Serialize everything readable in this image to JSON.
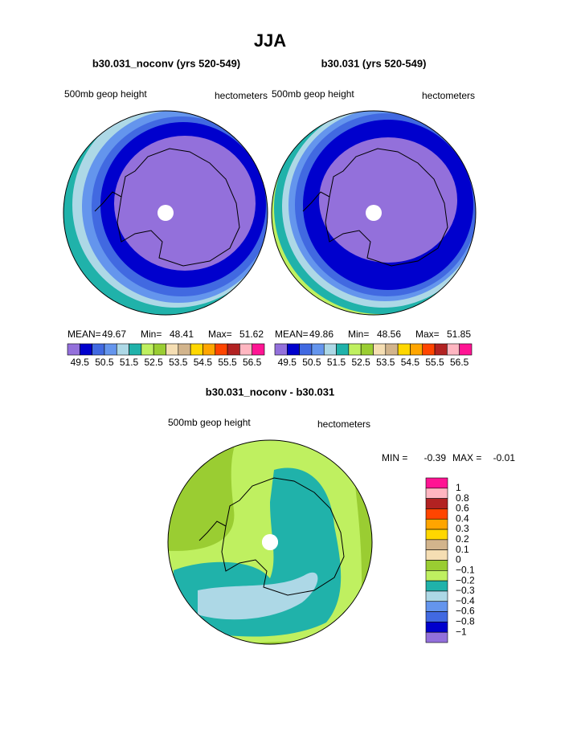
{
  "title": "JJA",
  "panels": [
    {
      "subtitle": "b30.031_noconv (yrs 520-549)",
      "left_label": "500mb geop height",
      "right_label": "hectometers",
      "stats": [
        {
          "label": "MEAN=",
          "value": 49.67
        },
        {
          "label": "Min=",
          "value": 48.41
        },
        {
          "label": "Max=",
          "value": 51.62
        }
      ],
      "colorbar": {
        "colors": [
          "#9370db",
          "#0000cd",
          "#4169e1",
          "#6495ed",
          "#add8e6",
          "#20b2aa",
          "#bff060",
          "#9acd32",
          "#f5deb3",
          "#d2b48c",
          "#ffd700",
          "#ffa500",
          "#ff4500",
          "#b22222",
          "#ffb6c1",
          "#ff1493"
        ],
        "labels": [
          "49.5",
          "50.5",
          "51.5",
          "52.5",
          "53.5",
          "54.5",
          "55.5",
          "56.5"
        ]
      }
    },
    {
      "subtitle": "b30.031 (yrs 520-549)",
      "left_label": "500mb geop height",
      "right_label": "hectometers",
      "stats": [
        {
          "label": "MEAN=",
          "value": 49.86
        },
        {
          "label": "Min=",
          "value": 48.56
        },
        {
          "label": "Max=",
          "value": 51.85
        }
      ],
      "colorbar": {
        "colors": [
          "#9370db",
          "#0000cd",
          "#4169e1",
          "#6495ed",
          "#add8e6",
          "#20b2aa",
          "#bff060",
          "#9acd32",
          "#f5deb3",
          "#d2b48c",
          "#ffd700",
          "#ffa500",
          "#ff4500",
          "#b22222",
          "#ffb6c1",
          "#ff1493"
        ],
        "labels": [
          "49.5",
          "50.5",
          "51.5",
          "52.5",
          "53.5",
          "54.5",
          "55.5",
          "56.5"
        ]
      }
    }
  ],
  "difference": {
    "subtitle": "b30.031_noconv - b30.031",
    "left_label": "500mb geop height",
    "right_label": "hectometers",
    "stats": [
      {
        "label": "MIN =",
        "value": -0.39
      },
      {
        "label": "MAX =",
        "value": -0.01
      }
    ],
    "colorbar": {
      "colors": [
        "#ff1493",
        "#ffb6c1",
        "#b22222",
        "#ff4500",
        "#ffa500",
        "#ffd700",
        "#d2b48c",
        "#f5deb3",
        "#9acd32",
        "#bff060",
        "#20b2aa",
        "#add8e6",
        "#6495ed",
        "#4169e1",
        "#0000cd",
        "#9370db"
      ],
      "labels": [
        "1",
        "0.8",
        "0.6",
        "0.4",
        "0.3",
        "0.2",
        "0.1",
        "0",
        "−0.1",
        "−0.2",
        "−0.3",
        "−0.4",
        "−0.6",
        "−0.8",
        "−1"
      ]
    }
  }
}
